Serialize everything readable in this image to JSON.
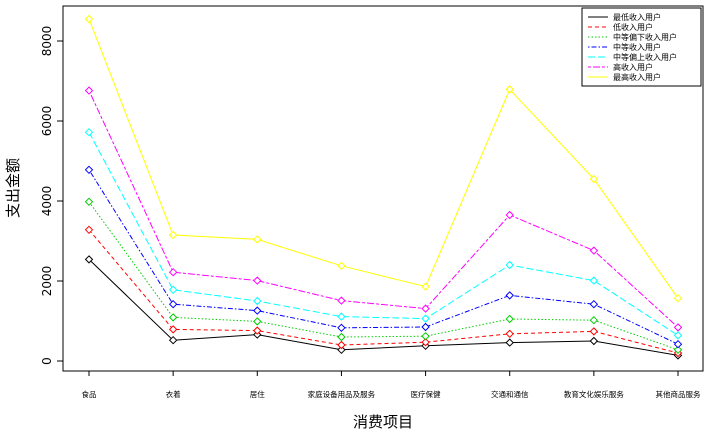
{
  "chart_data": {
    "type": "line",
    "title": "",
    "xlabel": "消费项目",
    "ylabel": "支出金额",
    "ylim": [
      0,
      8800
    ],
    "yticks": [
      0,
      2000,
      4000,
      6000,
      8000
    ],
    "grid": false,
    "legend_position": "top-right",
    "categories": [
      "食品",
      "衣着",
      "居住",
      "家庭设备用品及服务",
      "医疗保健",
      "交通和通信",
      "教育文化娱乐服务",
      "其他商品服务"
    ],
    "series": [
      {
        "name": "最低收入用户",
        "color": "#000000",
        "dash": "solid",
        "values": [
          2540,
          520,
          660,
          280,
          380,
          460,
          500,
          140
        ]
      },
      {
        "name": "低收入用户",
        "color": "#ff0000",
        "dash": "dashed",
        "values": [
          3280,
          790,
          760,
          400,
          470,
          680,
          740,
          200
        ]
      },
      {
        "name": "中等偏下收入用户",
        "color": "#00cd00",
        "dash": "dotted",
        "values": [
          3980,
          1090,
          990,
          600,
          620,
          1050,
          1020,
          280
        ]
      },
      {
        "name": "中等收入用户",
        "color": "#0000ff",
        "dash": "dotdash",
        "values": [
          4780,
          1420,
          1260,
          830,
          850,
          1640,
          1420,
          420
        ]
      },
      {
        "name": "中等偏上收入用户",
        "color": "#00ffff",
        "dash": "longdash",
        "values": [
          5720,
          1780,
          1500,
          1110,
          1060,
          2400,
          2010,
          640
        ]
      },
      {
        "name": "高收入用户",
        "color": "#ff00ff",
        "dash": "twodash",
        "values": [
          6760,
          2220,
          2010,
          1510,
          1310,
          3650,
          2760,
          840
        ]
      },
      {
        "name": "最高收入用户",
        "color": "#ffff00",
        "dash": "solid",
        "values": [
          8550,
          3150,
          3040,
          2380,
          1860,
          6790,
          4550,
          1570
        ]
      }
    ]
  }
}
